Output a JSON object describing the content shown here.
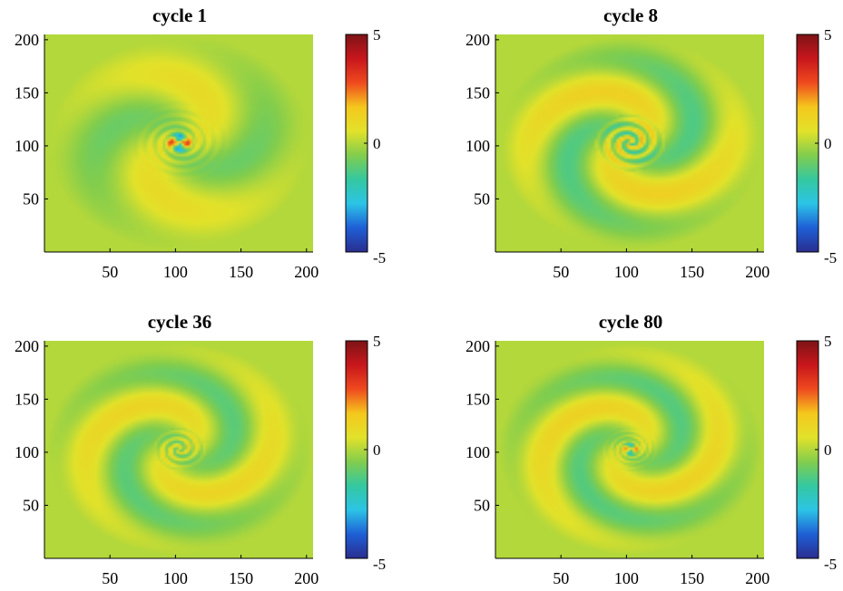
{
  "colors": {
    "background_field": "#7fcc4e",
    "colormap": [
      "#2a2d8f",
      "#1e5fd6",
      "#2cc4e6",
      "#34c8a0",
      "#82cd4d",
      "#e2e22a",
      "#f5c71d",
      "#ef4a1e",
      "#c8161c",
      "#7d1416"
    ]
  },
  "chart_data": [
    {
      "type": "heatmap",
      "title": "cycle 1",
      "x_ticks": [
        50,
        100,
        150,
        200
      ],
      "y_ticks": [
        200,
        150,
        100,
        50
      ],
      "xlim": [
        0,
        205
      ],
      "ylim": [
        0,
        205
      ],
      "colorbar": {
        "min": -5,
        "max": 5,
        "ticks": [
          5,
          0,
          -5
        ],
        "tick_labels": [
          "5",
          "0",
          "-5"
        ]
      },
      "pattern": {
        "spiral_amplitude": 0.55,
        "spiral_turns": 0.8,
        "core_type": "quadrupole",
        "core_amplitude": 4.6,
        "core_radius": 6
      }
    },
    {
      "type": "heatmap",
      "title": "cycle 8",
      "x_ticks": [
        50,
        100,
        150,
        200
      ],
      "y_ticks": [
        200,
        150,
        100,
        50
      ],
      "xlim": [
        0,
        205
      ],
      "ylim": [
        0,
        205
      ],
      "colorbar": {
        "min": -5,
        "max": 5,
        "ticks": [
          5,
          0,
          -5
        ],
        "tick_labels": [
          "5",
          "0",
          "-5"
        ]
      },
      "pattern": {
        "spiral_amplitude": 0.8,
        "spiral_turns": 1.2,
        "core_type": "spiral",
        "core_amplitude": 1.8,
        "core_radius": 12
      }
    },
    {
      "type": "heatmap",
      "title": "cycle 36",
      "x_ticks": [
        50,
        100,
        150,
        200
      ],
      "y_ticks": [
        200,
        150,
        100,
        50
      ],
      "xlim": [
        0,
        205
      ],
      "ylim": [
        0,
        205
      ],
      "colorbar": {
        "min": -5,
        "max": 5,
        "ticks": [
          5,
          0,
          -5
        ],
        "tick_labels": [
          "5",
          "0",
          "-5"
        ]
      },
      "pattern": {
        "spiral_amplitude": 0.7,
        "spiral_turns": 1.4,
        "core_type": "spiral",
        "core_amplitude": 1.2,
        "core_radius": 9
      }
    },
    {
      "type": "heatmap",
      "title": "cycle 80",
      "x_ticks": [
        50,
        100,
        150,
        200
      ],
      "y_ticks": [
        200,
        150,
        100,
        50
      ],
      "xlim": [
        0,
        205
      ],
      "ylim": [
        0,
        205
      ],
      "colorbar": {
        "min": -5,
        "max": 5,
        "ticks": [
          5,
          0,
          -5
        ],
        "tick_labels": [
          "5",
          "0",
          "-5"
        ]
      },
      "pattern": {
        "spiral_amplitude": 0.75,
        "spiral_turns": 1.5,
        "core_type": "quadrupole",
        "core_amplitude": 3.2,
        "core_radius": 4
      }
    }
  ]
}
